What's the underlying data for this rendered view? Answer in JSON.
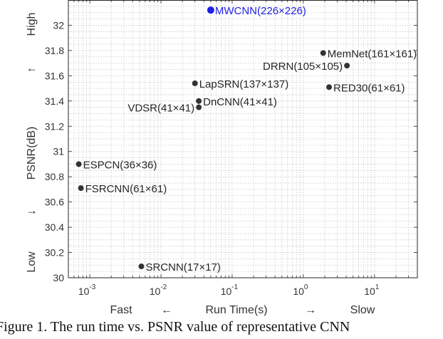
{
  "chart_data": {
    "type": "scatter",
    "xscale": "log",
    "xlim": [
      0.0005,
      40
    ],
    "ylim": [
      30,
      32.2
    ],
    "y_ticks": [
      30,
      30.2,
      30.4,
      30.6,
      30.8,
      31,
      31.2,
      31.4,
      31.6,
      31.8,
      32
    ],
    "y_tick_labels": [
      "30",
      "30.2",
      "30.4",
      "30.6",
      "30.8",
      "31",
      "31.2",
      "31.4",
      "31.6",
      "31.8",
      "32"
    ],
    "x_ticks": [
      0.001,
      0.01,
      0.1,
      1,
      10
    ],
    "x_tick_labels": [
      {
        "base": "10",
        "exp": "-3"
      },
      {
        "base": "10",
        "exp": "-2"
      },
      {
        "base": "10",
        "exp": "-1"
      },
      {
        "base": "10",
        "exp": "0"
      },
      {
        "base": "10",
        "exp": "1"
      }
    ],
    "grid": true,
    "xlabel": {
      "left": "Fast",
      "left_arrow": "←",
      "center": "Run Time(s)",
      "right_arrow": "→",
      "right": "Slow"
    },
    "ylabel": {
      "bottom": "Low",
      "down_arrow": "↓",
      "center": "PSNR(dB)",
      "up_arrow": "↑",
      "top": "High"
    },
    "points": [
      {
        "name": "MWCNN(226×226)",
        "x": 0.05,
        "y": 32.12,
        "color": "#1f1fe6",
        "label_side": "right"
      },
      {
        "name": "MemNet(161×161)",
        "x": 1.9,
        "y": 31.78,
        "color": "#333333",
        "label_side": "right"
      },
      {
        "name": "DRRN(105×105)",
        "x": 4.1,
        "y": 31.68,
        "color": "#333333",
        "label_side": "left"
      },
      {
        "name": "RED30(61×61)",
        "x": 2.3,
        "y": 31.51,
        "color": "#333333",
        "label_side": "right"
      },
      {
        "name": "LapSRN(137×137)",
        "x": 0.03,
        "y": 31.54,
        "color": "#333333",
        "label_side": "right"
      },
      {
        "name": "DnCNN(41×41)",
        "x": 0.034,
        "y": 31.4,
        "color": "#333333",
        "label_side": "right"
      },
      {
        "name": "VDSR(41×41)",
        "x": 0.034,
        "y": 31.35,
        "color": "#333333",
        "label_side": "left"
      },
      {
        "name": "ESPCN(36×36)",
        "x": 0.0007,
        "y": 30.9,
        "color": "#333333",
        "label_side": "right"
      },
      {
        "name": "FSRCNN(61×61)",
        "x": 0.00075,
        "y": 30.71,
        "color": "#333333",
        "label_side": "right"
      },
      {
        "name": "SRCNN(17×17)",
        "x": 0.0053,
        "y": 30.09,
        "color": "#333333",
        "label_side": "right"
      }
    ]
  },
  "caption": "Figure 1. The run time vs.  PSNR value of representative CNN"
}
